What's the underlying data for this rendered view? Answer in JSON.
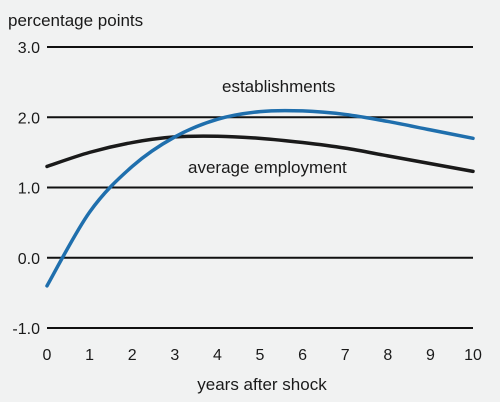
{
  "chart_data": {
    "type": "line",
    "ylabel": "percentage points",
    "xlabel": "years after shock",
    "xlim": [
      0,
      10
    ],
    "ylim": [
      -1.0,
      3.0
    ],
    "x_ticks": [
      0,
      1,
      2,
      3,
      4,
      5,
      6,
      7,
      8,
      9,
      10
    ],
    "y_ticks": [
      -1.0,
      0.0,
      1.0,
      2.0,
      3.0
    ],
    "y_tick_labels": [
      "-1.0",
      "0.0",
      "1.0",
      "2.0",
      "3.0"
    ],
    "grid": "horizontal",
    "series": [
      {
        "name": "establishments",
        "color": "#1f6fad",
        "x": [
          0,
          1,
          2,
          3,
          4,
          5,
          6,
          7,
          8,
          9,
          10
        ],
        "y": [
          -0.4,
          0.65,
          1.3,
          1.72,
          1.97,
          2.08,
          2.09,
          2.04,
          1.94,
          1.82,
          1.7
        ]
      },
      {
        "name": "average employment",
        "color": "#1a1a1a",
        "x": [
          0,
          1,
          2,
          3,
          4,
          5,
          6,
          7,
          8,
          9,
          10
        ],
        "y": [
          1.3,
          1.5,
          1.64,
          1.72,
          1.73,
          1.7,
          1.64,
          1.56,
          1.45,
          1.34,
          1.23
        ]
      }
    ]
  }
}
